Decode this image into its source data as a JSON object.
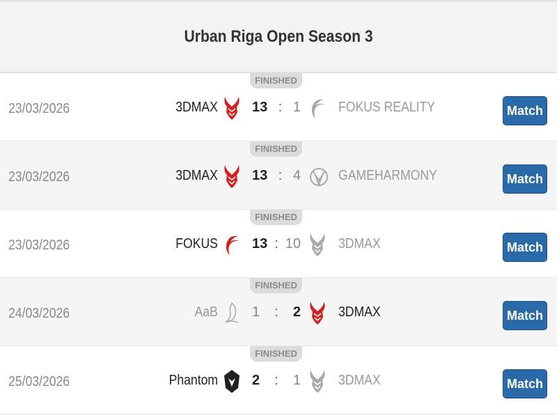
{
  "title": "Urban Riga Open Season 3",
  "colors": {
    "accent": "#2a6aa8",
    "devil": "#d42020"
  },
  "matches": [
    {
      "status": "FINISHED",
      "date": "23/03/2026",
      "home": "3DMAX",
      "home_logo": "devil-red",
      "home_score": "13",
      "away_score": "1",
      "away": "FOKUS REALITY",
      "away_logo": "fokus-gray",
      "winner": "home",
      "button": "Match"
    },
    {
      "status": "FINISHED",
      "date": "23/03/2026",
      "home": "3DMAX",
      "home_logo": "devil-red",
      "home_score": "13",
      "away_score": "4",
      "away": "GAMEHARMONY",
      "away_logo": "gameharmony-gray",
      "winner": "home",
      "button": "Match"
    },
    {
      "status": "FINISHED",
      "date": "23/03/2026",
      "home": "FOKUS",
      "home_logo": "fokus-red",
      "home_score": "13",
      "away_score": "10",
      "away": "3DMAX",
      "away_logo": "devil-gray",
      "winner": "home",
      "button": "Match"
    },
    {
      "status": "FINISHED",
      "date": "24/03/2026",
      "home": "AaB",
      "home_logo": "aab-gray",
      "home_score": "1",
      "away_score": "2",
      "away": "3DMAX",
      "away_logo": "devil-red",
      "winner": "away",
      "button": "Match"
    },
    {
      "status": "FINISHED",
      "date": "25/03/2026",
      "home": "Phantom",
      "home_logo": "phantom-black",
      "home_score": "2",
      "away_score": "1",
      "away": "3DMAX",
      "away_logo": "devil-gray",
      "winner": "home",
      "button": "Match"
    }
  ]
}
